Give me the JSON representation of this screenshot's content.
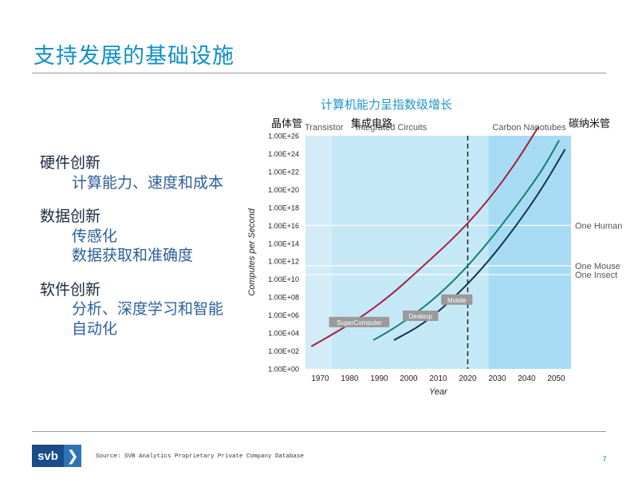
{
  "slide": {
    "title": "支持发展的基础设施",
    "source": "Source: SVB Analytics Proprietary Private Company Database",
    "page_number": "7",
    "logo": {
      "text": "svb",
      "arrow": "❯"
    }
  },
  "left_list": [
    {
      "heading": "硬件创新",
      "items": [
        "计算能力、速度和成本"
      ]
    },
    {
      "heading": "数据创新",
      "items": [
        "传感化",
        "数据获取和准确度"
      ]
    },
    {
      "heading": "软件创新",
      "items": [
        "分析、深度学习和智能",
        "自动化"
      ]
    }
  ],
  "annotations": {
    "chart_title_cn": "计算机能力呈指数级增长",
    "transistor_cn": "晶体管",
    "ic_cn": "集成电路",
    "nanotube_cn": "碳纳米管"
  },
  "chart_data": {
    "type": "line",
    "xlabel": "Year",
    "ylabel": "Computes per Second",
    "x_ticks": [
      1970,
      1980,
      1990,
      2000,
      2010,
      2020,
      2030,
      2040,
      2050
    ],
    "y_tick_labels": [
      "1.00E+00",
      "1.00E+02",
      "1.00E+04",
      "1.00E+06",
      "1.00E+08",
      "1.00E+10",
      "1.00E+12",
      "1.00E+14",
      "1.00E+16",
      "1.00E+18",
      "1.00E+20",
      "1.00E+22",
      "1.00E+24",
      "1.00E+26"
    ],
    "xlim": [
      1965,
      2055
    ],
    "ylim_log10": [
      0,
      26
    ],
    "vertical_dashed_line_x": 2020,
    "regions": [
      {
        "label": "Transistor",
        "x_range": [
          1965,
          1974
        ],
        "color": "#d3ecf7"
      },
      {
        "label": "Integrated Circuits",
        "x_range": [
          1974,
          2027
        ],
        "color": "#c5e8f7"
      },
      {
        "label": "Carbon Nanotubes",
        "x_range": [
          2027,
          2055
        ],
        "color": "#a7dbf3"
      }
    ],
    "reference_lines": [
      {
        "label": "One Human",
        "log10": 16
      },
      {
        "label": "One Mouse",
        "log10": 11.5
      },
      {
        "label": "One Insect",
        "log10": 10.5
      }
    ],
    "series": [
      {
        "name": "SuperComputer",
        "color": "#a3203f",
        "points": [
          [
            1967,
            2.5
          ],
          [
            1975,
            4
          ],
          [
            1985,
            6
          ],
          [
            1995,
            8.5
          ],
          [
            2005,
            11.5
          ],
          [
            2015,
            14.5
          ],
          [
            2025,
            18
          ],
          [
            2035,
            22.3
          ],
          [
            2044,
            27
          ]
        ]
      },
      {
        "name": "Desktop",
        "color": "#14806b",
        "points": [
          [
            1988,
            3.2
          ],
          [
            1995,
            4.5
          ],
          [
            2005,
            6.8
          ],
          [
            2015,
            9.7
          ],
          [
            2025,
            13.3
          ],
          [
            2035,
            17.5
          ],
          [
            2045,
            22
          ],
          [
            2051,
            25.5
          ]
        ]
      },
      {
        "name": "Mobile",
        "color": "#13334f",
        "points": [
          [
            1995,
            3.2
          ],
          [
            2005,
            5
          ],
          [
            2015,
            7.8
          ],
          [
            2025,
            11.2
          ],
          [
            2035,
            15.3
          ],
          [
            2045,
            20
          ],
          [
            2053,
            24.5
          ]
        ]
      }
    ],
    "series_labels": [
      "SuperComputer",
      "Desktop",
      "Mobile"
    ],
    "series_label_anchor": [
      [
        1973,
        5
      ],
      [
        1998,
        5.7
      ],
      [
        2011,
        7.5
      ]
    ]
  }
}
